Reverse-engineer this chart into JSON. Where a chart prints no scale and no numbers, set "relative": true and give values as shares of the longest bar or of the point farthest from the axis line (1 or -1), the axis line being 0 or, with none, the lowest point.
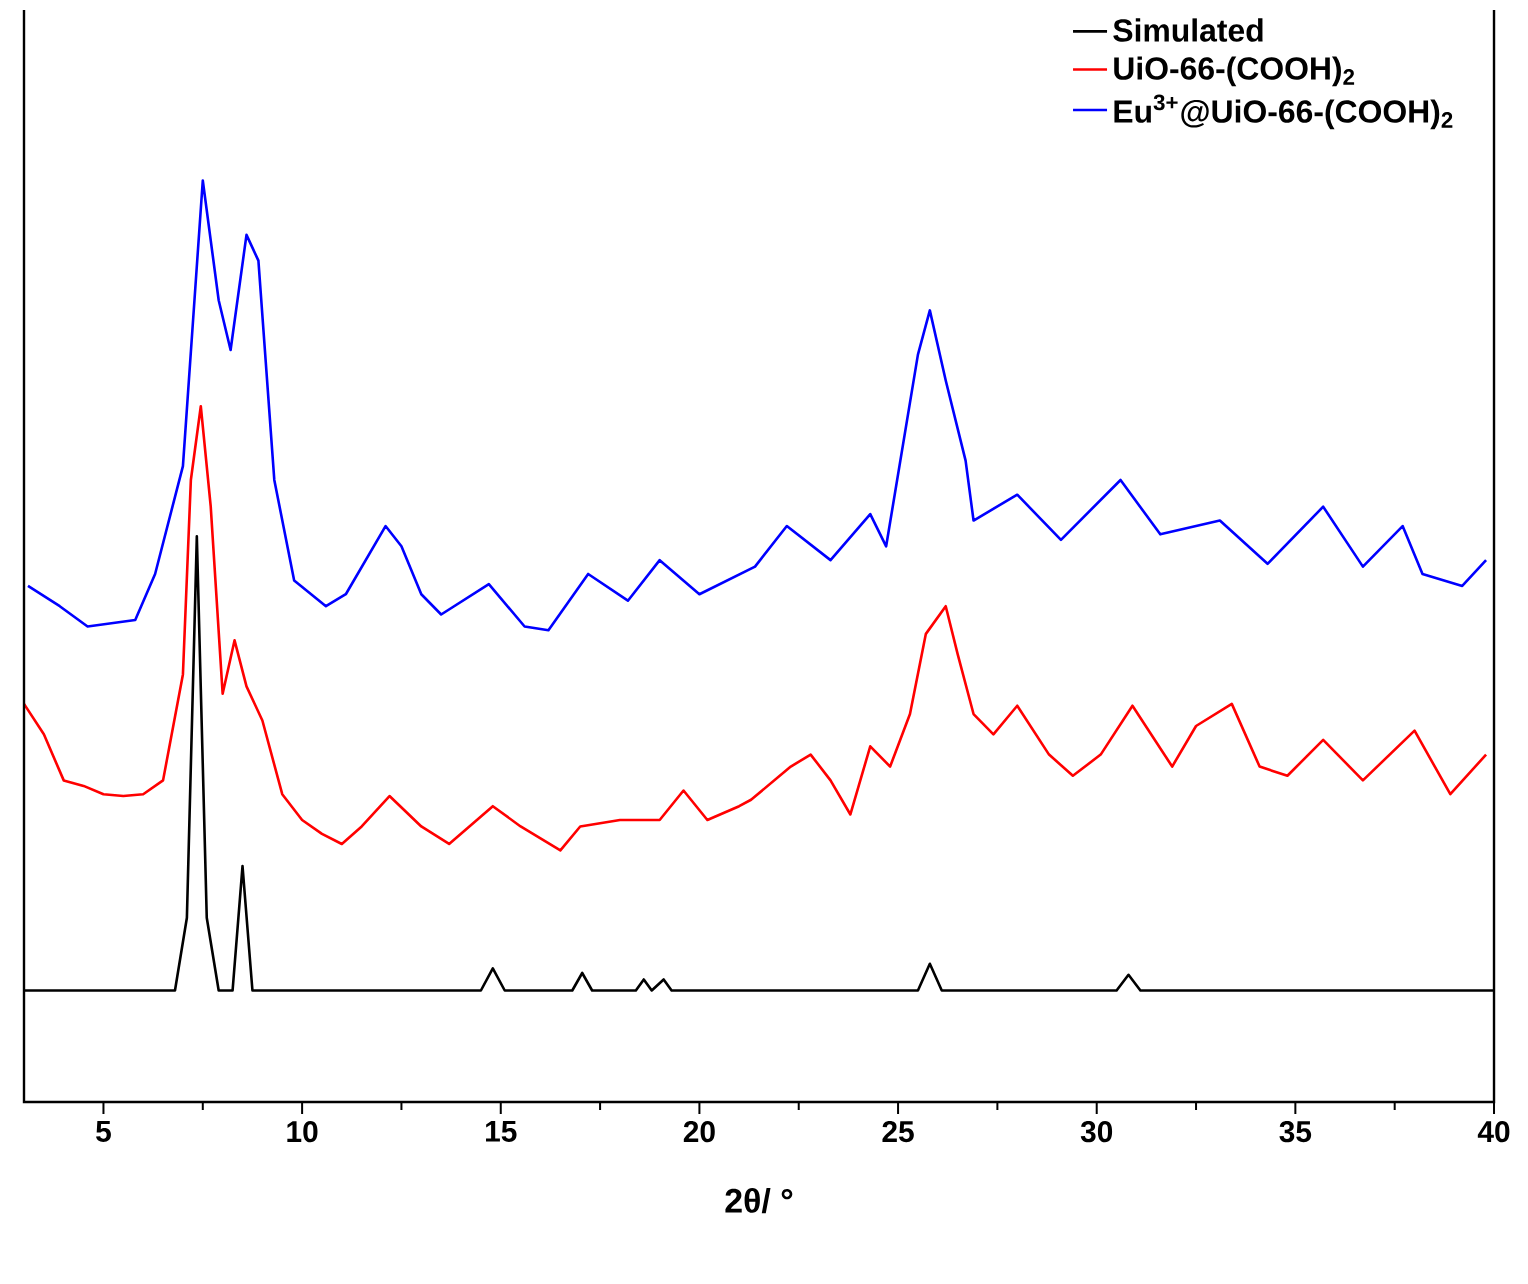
{
  "chart_data": {
    "type": "line",
    "relative": true,
    "xlabel": "2θ/ °",
    "xlim": [
      3,
      40
    ],
    "xticks": [
      5,
      10,
      15,
      20,
      25,
      30,
      35,
      40
    ],
    "legend": "top right",
    "marker": "none",
    "series": [
      {
        "name": "Simulated",
        "color": "#000000",
        "x": [
          3,
          6.8,
          7.1,
          7.35,
          7.6,
          7.9,
          8.25,
          8.5,
          8.75,
          14.5,
          14.8,
          15.1,
          16.8,
          17.05,
          17.3,
          18.4,
          18.6,
          18.8,
          19.1,
          19.3,
          25.5,
          25.8,
          26.1,
          30.5,
          30.8,
          31.1,
          40
        ],
        "values": [
          0.121,
          0.121,
          0.2,
          0.614,
          0.2,
          0.121,
          0.121,
          0.256,
          0.121,
          0.121,
          0.145,
          0.121,
          0.121,
          0.14,
          0.121,
          0.121,
          0.133,
          0.121,
          0.133,
          0.121,
          0.121,
          0.15,
          0.121,
          0.121,
          0.138,
          0.121,
          0.121
        ]
      },
      {
        "name": "UiO-66-(COOH)$_{2}$",
        "color": "#ff0000",
        "x": [
          3.0,
          3.5,
          4.0,
          4.5,
          5.0,
          5.5,
          6.0,
          6.5,
          7.0,
          7.2,
          7.45,
          7.7,
          8.0,
          8.3,
          8.6,
          9.0,
          9.5,
          10,
          10.5,
          11,
          11.5,
          12.2,
          13,
          13.7,
          14.8,
          15.5,
          16.5,
          17,
          18,
          19,
          19.6,
          20.2,
          21,
          21.3,
          22.3,
          22.8,
          23.3,
          23.8,
          24.3,
          24.8,
          25.3,
          25.7,
          26.2,
          26.5,
          26.9,
          27.4,
          28.0,
          28.8,
          29.4,
          30.1,
          30.9,
          31.9,
          32.5,
          33.4,
          34.1,
          34.8,
          35.7,
          36.7,
          38.0,
          38.9,
          39.8
        ],
        "values": [
          0.432,
          0.399,
          0.349,
          0.343,
          0.334,
          0.332,
          0.334,
          0.349,
          0.464,
          0.675,
          0.755,
          0.646,
          0.443,
          0.501,
          0.451,
          0.414,
          0.334,
          0.306,
          0.291,
          0.28,
          0.299,
          0.332,
          0.299,
          0.28,
          0.321,
          0.299,
          0.273,
          0.299,
          0.306,
          0.306,
          0.338,
          0.306,
          0.321,
          0.328,
          0.364,
          0.377,
          0.349,
          0.312,
          0.386,
          0.364,
          0.421,
          0.508,
          0.538,
          0.486,
          0.421,
          0.399,
          0.43,
          0.377,
          0.354,
          0.377,
          0.43,
          0.364,
          0.408,
          0.432,
          0.364,
          0.354,
          0.393,
          0.349,
          0.403,
          0.334,
          0.377
        ]
      },
      {
        "name": "Eu$^{3+}$@UiO-66-(COOH)$_{2}$",
        "color": "#0000ff",
        "x": [
          3.1,
          3.9,
          4.6,
          5.8,
          6.3,
          7.0,
          7.3,
          7.5,
          7.9,
          8.2,
          8.6,
          8.9,
          9.3,
          9.8,
          10.6,
          11.1,
          12.1,
          12.5,
          13.0,
          13.5,
          14.7,
          15.6,
          16.2,
          17.2,
          18.2,
          19.0,
          20.0,
          21.4,
          22.2,
          23.3,
          24.3,
          24.7,
          25.5,
          25.8,
          26.2,
          26.7,
          26.9,
          28.0,
          29.1,
          30.6,
          31.6,
          33.1,
          34.3,
          35.7,
          36.7,
          37.7,
          38.2,
          39.2,
          39.8
        ],
        "values": [
          0.56,
          0.538,
          0.516,
          0.523,
          0.573,
          0.69,
          0.876,
          1,
          0.87,
          0.816,
          0.941,
          0.913,
          0.675,
          0.566,
          0.538,
          0.551,
          0.625,
          0.603,
          0.551,
          0.529,
          0.562,
          0.516,
          0.512,
          0.573,
          0.544,
          0.588,
          0.551,
          0.581,
          0.625,
          0.588,
          0.638,
          0.603,
          0.811,
          0.859,
          0.783,
          0.696,
          0.631,
          0.659,
          0.61,
          0.675,
          0.616,
          0.631,
          0.584,
          0.646,
          0.581,
          0.625,
          0.573,
          0.56,
          0.588
        ]
      }
    ]
  }
}
